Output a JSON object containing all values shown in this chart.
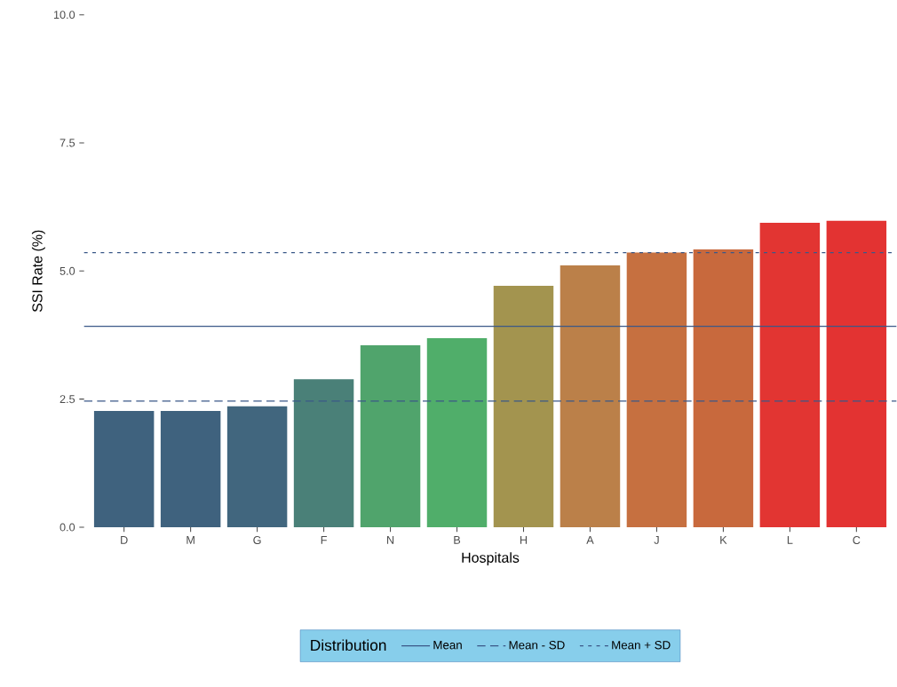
{
  "chart_data": {
    "type": "bar",
    "xlabel": "Hospitals",
    "ylabel": "SSI Rate (%)",
    "legend_title": "Distribution",
    "legend": "bottom",
    "grid": false,
    "categories": [
      "D",
      "M",
      "G",
      "F",
      "N",
      "B",
      "H",
      "A",
      "J",
      "K",
      "L",
      "C"
    ],
    "values": [
      2.27,
      2.27,
      2.36,
      2.89,
      3.55,
      3.69,
      4.71,
      5.11,
      5.36,
      5.42,
      5.94,
      5.98
    ],
    "colors": [
      "#3f627e",
      "#3f627e",
      "#41667e",
      "#4a8078",
      "#50a46c",
      "#50ae6a",
      "#a3944f",
      "#bb8049",
      "#c67040",
      "#c8693d",
      "#e23532",
      "#e33332"
    ],
    "ylim": [
      0,
      10
    ],
    "yticks": [
      {
        "value": 0,
        "label": "0.0"
      },
      {
        "value": 2.5,
        "label": "2.5"
      },
      {
        "value": 5,
        "label": "5.0"
      },
      {
        "value": 7.5,
        "label": "7.5"
      },
      {
        "value": 10,
        "label": "10.0"
      }
    ],
    "ref_lines": [
      {
        "axis": "y",
        "value": 3.92,
        "label": "Mean",
        "color": "#3b5888",
        "line_style": "solid"
      },
      {
        "axis": "y",
        "value": 2.46,
        "label": "Mean - SD",
        "color": "#3b5888",
        "line_style": "dashed"
      },
      {
        "axis": "y",
        "value": 5.36,
        "label": "Mean + SD",
        "color": "#3b5888",
        "line_style": "dotted"
      }
    ]
  }
}
